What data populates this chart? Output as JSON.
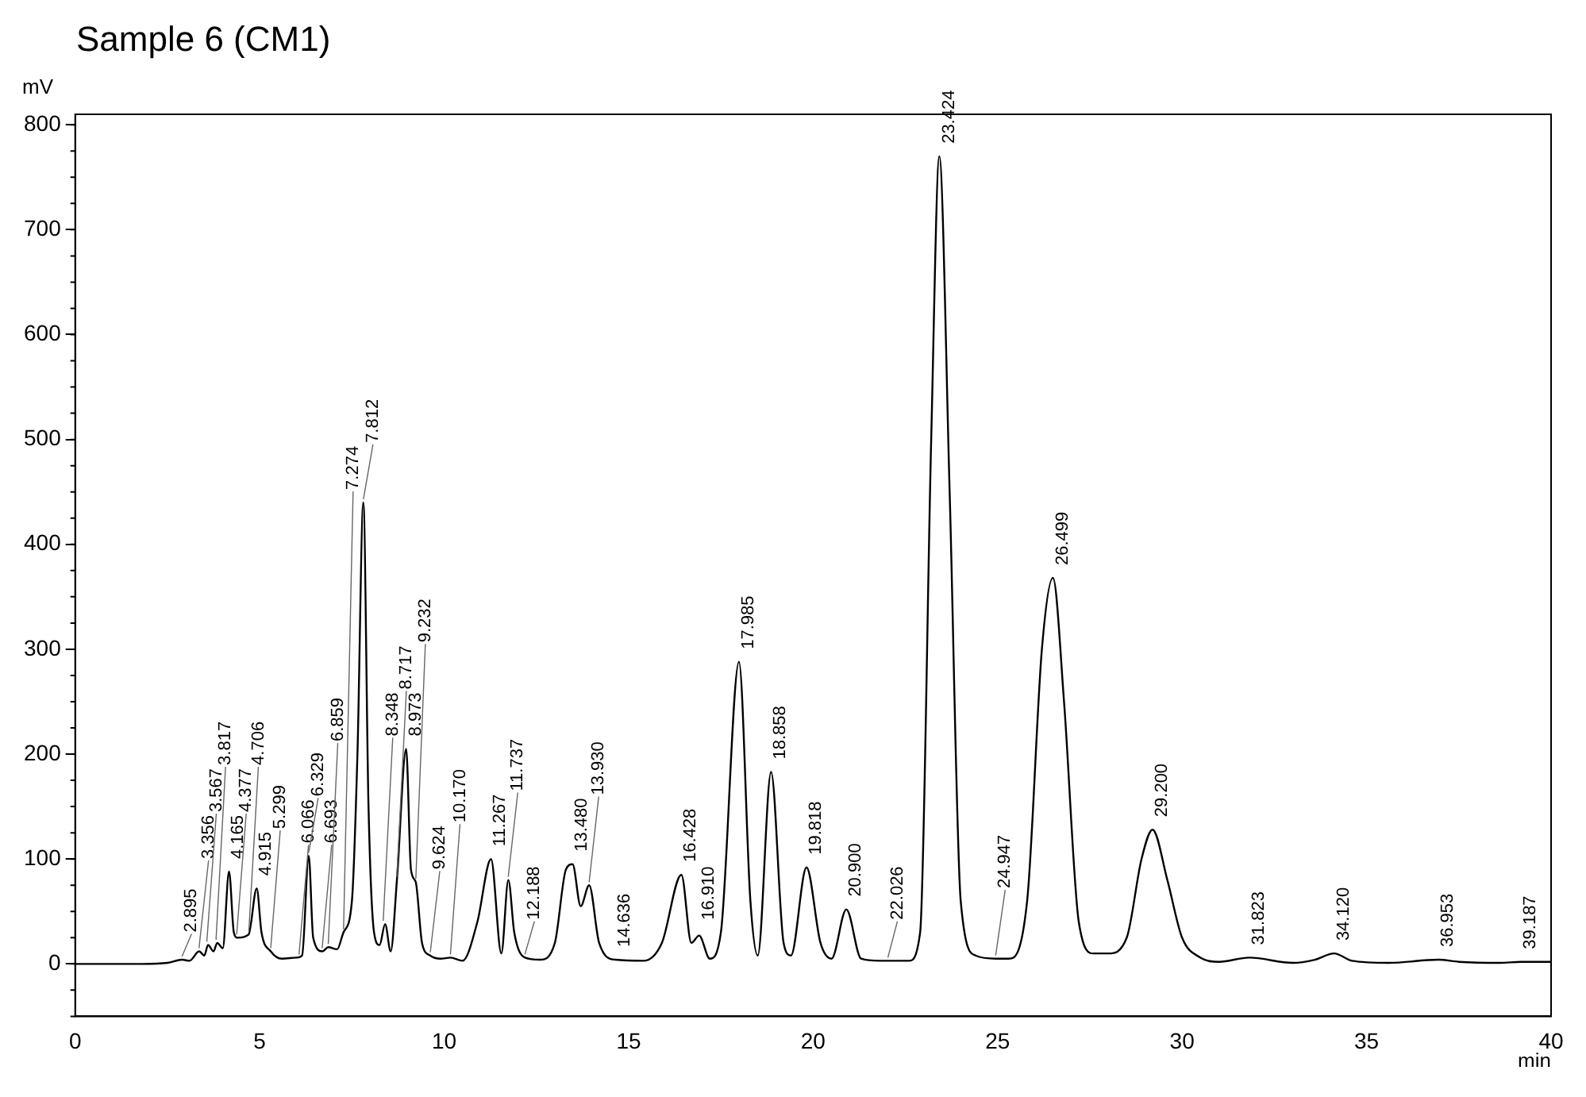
{
  "chart_data": {
    "type": "line",
    "title": "Sample 6 (CM1)",
    "xlabel": "min",
    "ylabel": "mV",
    "xlim": [
      0,
      40
    ],
    "ylim": [
      -50,
      810
    ],
    "xticks": [
      0,
      5,
      10,
      15,
      20,
      25,
      30,
      35,
      40
    ],
    "yticks": [
      0,
      100,
      200,
      300,
      400,
      500,
      600,
      700,
      800
    ],
    "grid": false,
    "legend": false,
    "marker": "none",
    "line_style": "solid",
    "series": [
      {
        "color": "#000000",
        "x": [
          0,
          1.8,
          2.5,
          2.9,
          3.1,
          3.36,
          3.5,
          3.6,
          3.75,
          3.85,
          4.0,
          4.17,
          4.3,
          4.4,
          4.7,
          4.92,
          5.05,
          5.3,
          5.6,
          6.0,
          6.15,
          6.33,
          6.45,
          6.7,
          6.86,
          7.1,
          7.27,
          7.5,
          7.65,
          7.81,
          7.95,
          8.1,
          8.25,
          8.4,
          8.55,
          8.72,
          8.97,
          9.1,
          9.23,
          9.4,
          9.62,
          9.9,
          10.17,
          10.5,
          10.9,
          11.27,
          11.55,
          11.74,
          11.9,
          12.19,
          12.6,
          13.0,
          13.3,
          13.48,
          13.7,
          13.93,
          14.2,
          14.64,
          15.4,
          15.9,
          16.43,
          16.7,
          16.91,
          17.2,
          17.5,
          17.99,
          18.3,
          18.5,
          18.86,
          19.2,
          19.4,
          19.82,
          20.2,
          20.5,
          20.9,
          21.3,
          21.8,
          22.6,
          22.9,
          23.2,
          23.42,
          23.7,
          24.0,
          24.4,
          24.95,
          25.3,
          25.8,
          26.2,
          26.5,
          26.8,
          27.2,
          27.6,
          28.0,
          28.5,
          28.9,
          29.2,
          29.6,
          30.0,
          30.5,
          31.0,
          31.82,
          33.0,
          33.6,
          34.12,
          34.6,
          35.6,
          36.95,
          37.5,
          38.6,
          39.19,
          40
        ],
        "values": [
          0,
          0,
          1,
          4,
          3,
          12,
          8,
          18,
          12,
          20,
          15,
          88,
          30,
          25,
          28,
          72,
          30,
          12,
          5,
          6,
          8,
          103,
          25,
          12,
          16,
          14,
          30,
          60,
          200,
          440,
          150,
          30,
          18,
          38,
          12,
          80,
          205,
          90,
          78,
          20,
          8,
          5,
          6,
          3,
          40,
          100,
          10,
          80,
          30,
          6,
          4,
          20,
          90,
          95,
          55,
          75,
          20,
          4,
          3,
          20,
          85,
          20,
          27,
          5,
          30,
          288,
          60,
          8,
          183,
          20,
          8,
          92,
          20,
          5,
          52,
          5,
          3,
          3,
          30,
          500,
          770,
          450,
          60,
          8,
          5,
          5,
          60,
          300,
          368,
          250,
          40,
          10,
          10,
          25,
          100,
          128,
          80,
          25,
          6,
          2,
          6,
          1,
          4,
          10,
          3,
          1,
          4,
          2,
          1,
          2,
          2
        ]
      }
    ],
    "annotations": [
      {
        "text": "2.895",
        "x": 2.895,
        "y": 4
      },
      {
        "text": "3.356",
        "x": 3.356,
        "y": 12
      },
      {
        "text": "3.567",
        "x": 3.567,
        "y": 18
      },
      {
        "text": "3.817",
        "x": 3.817,
        "y": 20
      },
      {
        "text": "4.165",
        "x": 4.165,
        "y": 88
      },
      {
        "text": "4.377",
        "x": 4.377,
        "y": 25
      },
      {
        "text": "4.706",
        "x": 4.706,
        "y": 28
      },
      {
        "text": "4.915",
        "x": 4.915,
        "y": 72
      },
      {
        "text": "5.299",
        "x": 5.299,
        "y": 12
      },
      {
        "text": "6.066",
        "x": 6.066,
        "y": 6
      },
      {
        "text": "6.329",
        "x": 6.329,
        "y": 103
      },
      {
        "text": "6.693",
        "x": 6.693,
        "y": 12
      },
      {
        "text": "6.859",
        "x": 6.859,
        "y": 16
      },
      {
        "text": "7.274",
        "x": 7.274,
        "y": 30
      },
      {
        "text": "7.812",
        "x": 7.812,
        "y": 440
      },
      {
        "text": "8.348",
        "x": 8.348,
        "y": 38
      },
      {
        "text": "8.717",
        "x": 8.717,
        "y": 80
      },
      {
        "text": "8.973",
        "x": 8.973,
        "y": 205
      },
      {
        "text": "9.232",
        "x": 9.232,
        "y": 78
      },
      {
        "text": "9.624",
        "x": 9.624,
        "y": 8
      },
      {
        "text": "10.170",
        "x": 10.17,
        "y": 6
      },
      {
        "text": "11.267",
        "x": 11.267,
        "y": 100
      },
      {
        "text": "11.737",
        "x": 11.737,
        "y": 80
      },
      {
        "text": "12.188",
        "x": 12.188,
        "y": 6
      },
      {
        "text": "13.480",
        "x": 13.48,
        "y": 95
      },
      {
        "text": "13.930",
        "x": 13.93,
        "y": 75
      },
      {
        "text": "14.636",
        "x": 14.636,
        "y": 4
      },
      {
        "text": "16.428",
        "x": 16.428,
        "y": 85
      },
      {
        "text": "16.910",
        "x": 16.91,
        "y": 27
      },
      {
        "text": "17.985",
        "x": 17.985,
        "y": 288
      },
      {
        "text": "18.858",
        "x": 18.858,
        "y": 183
      },
      {
        "text": "19.818",
        "x": 19.818,
        "y": 92
      },
      {
        "text": "20.900",
        "x": 20.9,
        "y": 52
      },
      {
        "text": "22.026",
        "x": 22.026,
        "y": 3
      },
      {
        "text": "23.424",
        "x": 23.424,
        "y": 770
      },
      {
        "text": "24.947",
        "x": 24.947,
        "y": 5
      },
      {
        "text": "26.499",
        "x": 26.499,
        "y": 368
      },
      {
        "text": "29.200",
        "x": 29.2,
        "y": 128
      },
      {
        "text": "31.823",
        "x": 31.823,
        "y": 6
      },
      {
        "text": "34.120",
        "x": 34.12,
        "y": 10
      },
      {
        "text": "36.953",
        "x": 36.953,
        "y": 4
      },
      {
        "text": "39.187",
        "x": 39.187,
        "y": 2
      }
    ]
  }
}
